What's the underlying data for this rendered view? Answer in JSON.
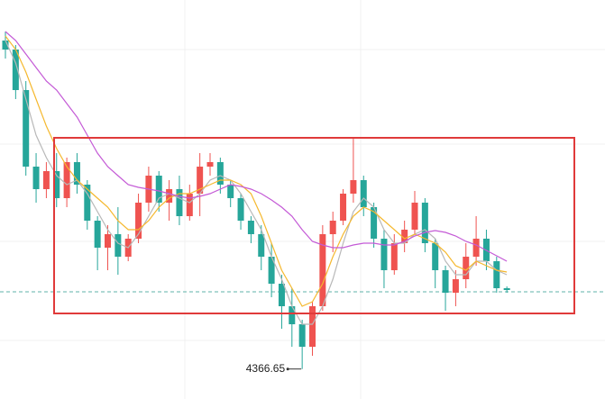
{
  "chart_data": {
    "type": "candlestick",
    "ylim": [
      4350,
      4571.5
    ],
    "up_color": "#ef5350",
    "down_color": "#26a69a",
    "price_line": 4409.5,
    "price_line_color": "#5fb3a9",
    "open": [
      4549,
      4544,
      4521.5,
      4479,
      4466.5,
      4476.5,
      4461.5,
      4481.5,
      4469,
      4449,
      4434,
      4441.5,
      4429,
      4439,
      4459,
      4474,
      4459,
      4466.5,
      4451.5,
      4464,
      4479,
      4481.5,
      4469,
      4461.5,
      4449,
      4441.5,
      4429,
      4414,
      4401.5,
      4391.5,
      4379,
      4401.5,
      4441.5,
      4449,
      4464,
      4471.5,
      4456.5,
      4439,
      4421.5,
      4436.5,
      4444,
      4459,
      4436.5,
      4421.5,
      4409,
      4416.5,
      4429,
      4439,
      4426.5,
      4411.5
    ],
    "high": [
      4554,
      4546.5,
      4526.5,
      4486.5,
      4481.5,
      4486.5,
      4484,
      4486.5,
      4471.5,
      4451.5,
      4446.5,
      4456.5,
      4441.5,
      4464,
      4479,
      4476.5,
      4471.5,
      4474,
      4469,
      4486.5,
      4486.5,
      4484,
      4471.5,
      4464,
      4451.5,
      4446.5,
      4436.5,
      4419,
      4411.5,
      4394,
      4404,
      4446.5,
      4454,
      4466.5,
      4495.5,
      4474,
      4459,
      4444,
      4441.5,
      4449,
      4465.5,
      4461.5,
      4439,
      4424,
      4421.5,
      4436.5,
      4451.5,
      4444,
      4429,
      4412.5
    ],
    "low": [
      4539,
      4516.5,
      4474,
      4459,
      4461.5,
      4456.5,
      4456.5,
      4464,
      4444,
      4421.5,
      4421.5,
      4419,
      4426.5,
      4436.5,
      4454,
      4454,
      4449,
      4446.5,
      4449,
      4451.5,
      4474,
      4464,
      4456.5,
      4444,
      4436.5,
      4421.5,
      4406.5,
      4389,
      4379,
      4366.65,
      4374,
      4399,
      4431.5,
      4446.5,
      4459,
      4451.5,
      4434,
      4411.5,
      4419,
      4431.5,
      4441.5,
      4431.5,
      4411.5,
      4399,
      4401.5,
      4411.5,
      4424,
      4421.5,
      4409,
      4409
    ],
    "close": [
      4544,
      4521.5,
      4479,
      4466.5,
      4476.5,
      4461.5,
      4481.5,
      4469,
      4449,
      4434,
      4441.5,
      4429,
      4439,
      4459,
      4474,
      4459,
      4466.5,
      4451.5,
      4464,
      4479,
      4481.5,
      4469,
      4461.5,
      4449,
      4441.5,
      4429,
      4414,
      4401.5,
      4391.5,
      4379,
      4401.5,
      4441.5,
      4449,
      4464,
      4471.5,
      4456.5,
      4439,
      4421.5,
      4436.5,
      4444,
      4459,
      4436.5,
      4421.5,
      4409,
      4416.5,
      4429,
      4439,
      4426.5,
      4411.5,
      4410.5
    ],
    "lines": [
      {
        "color": "#b8b8b8",
        "values": [
          4549,
          4536.5,
          4516.5,
          4496.5,
          4484,
          4474,
          4469,
          4471.5,
          4464,
          4454,
          4444,
          4436.5,
          4434,
          4441.5,
          4451.5,
          4461.5,
          4464,
          4461.5,
          4459,
          4464,
          4471.5,
          4474,
          4471.5,
          4464,
          4454,
          4444,
          4429,
          4416.5,
          4401.5,
          4391.5,
          4391.5,
          4401.5,
          4416.5,
          4436.5,
          4454,
          4461.5,
          4456.5,
          4444,
          4436.5,
          4436.5,
          4441.5,
          4444,
          4439,
          4426.5,
          4419,
          4419,
          4426.5,
          4426.5,
          4421.5,
          4419
        ]
      },
      {
        "color": "#f5b82e",
        "values": [
          4551.5,
          4544,
          4531.5,
          4516.5,
          4501.5,
          4489,
          4479,
          4471.5,
          4466.5,
          4461.5,
          4456.5,
          4449,
          4444,
          4444,
          4449,
          4456.5,
          4461.5,
          4464,
          4464,
          4466.5,
          4469,
          4471.5,
          4471.5,
          4469,
          4464,
          4451.5,
          4436.5,
          4421.5,
          4411.5,
          4401.5,
          4404,
          4414,
          4429,
          4441.5,
          4451.5,
          4456.5,
          4454,
          4449,
          4444,
          4439,
          4441.5,
          4439,
          4436.5,
          4431.5,
          4424,
          4421.5,
          4426.5,
          4424,
          4421.5,
          4420.5
        ]
      },
      {
        "color": "#c45ad6",
        "values": [
          4554,
          4549,
          4541.5,
          4534,
          4526.5,
          4521.5,
          4514,
          4506.5,
          4496.5,
          4486.5,
          4479,
          4474,
          4469,
          4467.5,
          4466.5,
          4465.5,
          4464,
          4462.5,
          4461.5,
          4462.5,
          4464,
          4466.5,
          4469,
          4468,
          4466.5,
          4464,
          4460.5,
          4456.5,
          4451.5,
          4444,
          4437.5,
          4435.5,
          4434,
          4434,
          4435.5,
          4436.5,
          4436.5,
          4435.5,
          4435.5,
          4437.5,
          4440.5,
          4442.5,
          4443.5,
          4442.5,
          4440.5,
          4437.5,
          4435.5,
          4432.5,
          4429.5,
          4426.5
        ]
      }
    ]
  }
}
